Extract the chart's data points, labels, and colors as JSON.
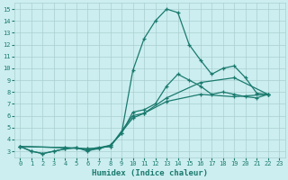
{
  "xlabel": "Humidex (Indice chaleur)",
  "xlim": [
    -0.5,
    23.5
  ],
  "ylim": [
    2.5,
    15.5
  ],
  "xticks": [
    0,
    1,
    2,
    3,
    4,
    5,
    6,
    7,
    8,
    9,
    10,
    11,
    12,
    13,
    14,
    15,
    16,
    17,
    18,
    19,
    20,
    21,
    22,
    23
  ],
  "yticks": [
    3,
    4,
    5,
    6,
    7,
    8,
    9,
    10,
    11,
    12,
    13,
    14,
    15
  ],
  "bg_color": "#cceef0",
  "grid_color": "#aacfcf",
  "line_color": "#1a7a6e",
  "lines": [
    [
      [
        0,
        3.4
      ],
      [
        1,
        3.0
      ],
      [
        2,
        2.8
      ],
      [
        3,
        3.0
      ],
      [
        4,
        3.2
      ],
      [
        5,
        3.3
      ],
      [
        6,
        3.0
      ],
      [
        7,
        3.3
      ],
      [
        8,
        3.5
      ],
      [
        9,
        4.5
      ],
      [
        10,
        9.8
      ],
      [
        11,
        12.5
      ],
      [
        12,
        14.0
      ],
      [
        13,
        15.0
      ],
      [
        14,
        14.7
      ],
      [
        15,
        12.0
      ],
      [
        16,
        10.7
      ],
      [
        17,
        9.5
      ],
      [
        18,
        10.0
      ],
      [
        19,
        10.2
      ],
      [
        20,
        9.2
      ],
      [
        21,
        7.9
      ],
      [
        22,
        7.8
      ]
    ],
    [
      [
        0,
        3.4
      ],
      [
        1,
        3.0
      ],
      [
        2,
        2.8
      ],
      [
        3,
        3.0
      ],
      [
        4,
        3.2
      ],
      [
        5,
        3.3
      ],
      [
        6,
        3.1
      ],
      [
        7,
        3.2
      ],
      [
        8,
        3.5
      ],
      [
        9,
        4.5
      ],
      [
        10,
        6.3
      ],
      [
        11,
        6.5
      ],
      [
        12,
        7.0
      ],
      [
        13,
        8.5
      ],
      [
        14,
        9.5
      ],
      [
        15,
        9.0
      ],
      [
        16,
        8.5
      ],
      [
        17,
        7.8
      ],
      [
        18,
        8.0
      ],
      [
        19,
        7.8
      ],
      [
        20,
        7.6
      ],
      [
        21,
        7.5
      ],
      [
        22,
        7.8
      ]
    ],
    [
      [
        0,
        3.4
      ],
      [
        4,
        3.3
      ],
      [
        6,
        3.2
      ],
      [
        8,
        3.4
      ],
      [
        10,
        6.0
      ],
      [
        11,
        6.2
      ],
      [
        13,
        7.5
      ],
      [
        16,
        8.8
      ],
      [
        19,
        9.2
      ],
      [
        22,
        7.8
      ]
    ],
    [
      [
        0,
        3.4
      ],
      [
        4,
        3.3
      ],
      [
        6,
        3.2
      ],
      [
        8,
        3.4
      ],
      [
        10,
        5.8
      ],
      [
        11,
        6.2
      ],
      [
        13,
        7.2
      ],
      [
        16,
        7.8
      ],
      [
        19,
        7.6
      ],
      [
        22,
        7.8
      ]
    ]
  ]
}
